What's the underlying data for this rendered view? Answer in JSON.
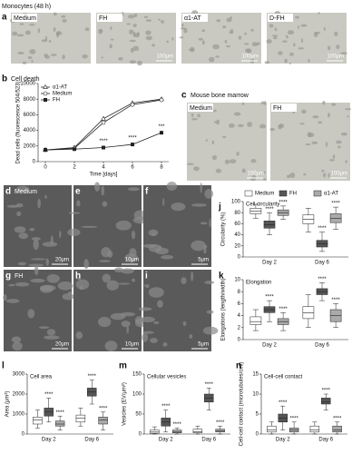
{
  "title": "Monocytes (48 h)",
  "panels": {
    "a": {
      "letter": "a",
      "images": [
        {
          "label": "Medium"
        },
        {
          "label": "FH",
          "scale": "100μm"
        },
        {
          "label": "α1-AT",
          "scale": "100μm"
        },
        {
          "label": "D-FH",
          "scale": "100μm"
        }
      ]
    },
    "c": {
      "letter": "c",
      "title": "Mouse bone marrow",
      "images": [
        {
          "label": "Medium",
          "scale": "100μm"
        },
        {
          "label": "FH",
          "scale": "100μm"
        }
      ]
    },
    "sem": {
      "images": [
        {
          "letter": "d",
          "label": "Medium",
          "scale": "20μm"
        },
        {
          "letter": "e",
          "scale": "10μm"
        },
        {
          "letter": "f",
          "scale": "5μm"
        },
        {
          "letter": "g",
          "label": "FH",
          "scale": "20μm"
        },
        {
          "letter": "h",
          "scale": "10μm"
        },
        {
          "letter": "i",
          "scale": "5μm"
        }
      ]
    }
  },
  "chart_data": [
    {
      "type": "line",
      "letter": "b",
      "title": "Cell death",
      "y_label": "Dead cells (fluorescence 504/523)",
      "x_label": "Time [days]",
      "x": [
        0,
        2,
        4,
        6,
        8
      ],
      "xlim": [
        -0.5,
        8.5
      ],
      "xticks": [
        0,
        2,
        4,
        6,
        8
      ],
      "ylim": [
        0,
        10000
      ],
      "yticks": [
        0,
        2000,
        4000,
        6000,
        8000,
        10000
      ],
      "legend": "upper left",
      "series": [
        {
          "name": "α1-AT",
          "marker": "triangle-open",
          "color": "#222222",
          "values": [
            1500,
            1800,
            5500,
            7500,
            8000
          ]
        },
        {
          "name": "Medium",
          "marker": "circle-open",
          "color": "#222222",
          "values": [
            1500,
            1700,
            5000,
            7300,
            7900
          ]
        },
        {
          "name": "FH",
          "marker": "square",
          "color": "#222222",
          "values": [
            1500,
            1600,
            1800,
            2200,
            3700
          ]
        }
      ],
      "annotations": [
        {
          "text": "****",
          "x": 4
        },
        {
          "text": "****",
          "x": 6
        },
        {
          "text": "***",
          "x": 8
        }
      ]
    },
    {
      "type": "box",
      "letter": "j",
      "title": "Cell circularity",
      "y_label": "Circularity (%)",
      "categories": [
        "Day 2",
        "Day 6"
      ],
      "ylim": [
        0,
        100
      ],
      "yticks": [
        0,
        20,
        40,
        60,
        80,
        100
      ],
      "legend": "top",
      "series": [
        {
          "name": "Medium",
          "color": "#ffffff",
          "values": [
            {
              "min": 70,
              "q1": 78,
              "median": 83,
              "q3": 88,
              "max": 95
            },
            {
              "min": 45,
              "q1": 60,
              "median": 68,
              "q3": 76,
              "max": 88
            }
          ]
        },
        {
          "name": "FH",
          "color": "#555555",
          "values": [
            {
              "min": 40,
              "q1": 52,
              "median": 58,
              "q3": 65,
              "max": 80
            },
            {
              "min": 10,
              "q1": 18,
              "median": 24,
              "q3": 30,
              "max": 45
            }
          ],
          "annotations": [
            "****",
            "****"
          ]
        },
        {
          "name": "α1-AT",
          "color": "#aaaaaa",
          "values": [
            {
              "min": 68,
              "q1": 75,
              "median": 80,
              "q3": 85,
              "max": 92
            },
            {
              "min": 50,
              "q1": 62,
              "median": 70,
              "q3": 78,
              "max": 90
            }
          ],
          "annotations": [
            "****",
            "****"
          ]
        }
      ]
    },
    {
      "type": "box",
      "letter": "k",
      "title": "Elongation",
      "y_label": "Elongations (length/width)",
      "categories": [
        "Day 2",
        "Day 6"
      ],
      "ylim": [
        0,
        10
      ],
      "yticks": [
        0,
        2,
        4,
        6,
        8,
        10
      ],
      "series": [
        {
          "color": "#ffffff",
          "values": [
            {
              "min": 1.5,
              "q1": 2.5,
              "median": 3,
              "q3": 3.8,
              "max": 5
            },
            {
              "min": 2,
              "q1": 3.5,
              "median": 4.5,
              "q3": 5.5,
              "max": 7.5
            }
          ]
        },
        {
          "color": "#555555",
          "values": [
            {
              "min": 3,
              "q1": 4.5,
              "median": 5,
              "q3": 5.5,
              "max": 6.5
            },
            {
              "min": 6.5,
              "q1": 7.5,
              "median": 8,
              "q3": 8.5,
              "max": 9.5
            }
          ],
          "annotations": [
            "****",
            "****"
          ]
        },
        {
          "color": "#aaaaaa",
          "values": [
            {
              "min": 1.5,
              "q1": 2.5,
              "median": 3,
              "q3": 3.5,
              "max": 4.5
            },
            {
              "min": 2,
              "q1": 3,
              "median": 4,
              "q3": 5,
              "max": 6
            }
          ],
          "annotations": [
            "****",
            "****"
          ]
        }
      ]
    },
    {
      "type": "box",
      "letter": "l",
      "title": "Cell area",
      "y_label": "Area (μm²)",
      "categories": [
        "Day 2",
        "Day 6"
      ],
      "ylim": [
        0,
        3000
      ],
      "yticks": [
        0,
        1000,
        2000,
        3000
      ],
      "series": [
        {
          "color": "#ffffff",
          "values": [
            {
              "min": 300,
              "q1": 500,
              "median": 700,
              "q3": 850,
              "max": 1200
            },
            {
              "min": 400,
              "q1": 600,
              "median": 800,
              "q3": 950,
              "max": 1300
            }
          ]
        },
        {
          "color": "#555555",
          "values": [
            {
              "min": 600,
              "q1": 900,
              "median": 1100,
              "q3": 1300,
              "max": 1800
            },
            {
              "min": 1500,
              "q1": 1900,
              "median": 2100,
              "q3": 2300,
              "max": 2700
            }
          ],
          "annotations": [
            "****",
            "****"
          ]
        },
        {
          "color": "#aaaaaa",
          "values": [
            {
              "min": 200,
              "q1": 400,
              "median": 500,
              "q3": 650,
              "max": 900
            },
            {
              "min": 200,
              "q1": 500,
              "median": 700,
              "q3": 850,
              "max": 1100
            }
          ],
          "annotations": [
            "****",
            "****"
          ]
        }
      ]
    },
    {
      "type": "box",
      "letter": "m",
      "title": "Cellular vesicles",
      "y_label": "Vesicles (EV/μm²)",
      "categories": [
        "Day 2",
        "Day 6"
      ],
      "ylim": [
        0,
        150
      ],
      "yticks": [
        0,
        50,
        100,
        150
      ],
      "series": [
        {
          "color": "#ffffff",
          "values": [
            {
              "min": 0,
              "q1": 2,
              "median": 5,
              "q3": 10,
              "max": 18
            },
            {
              "min": 0,
              "q1": 3,
              "median": 6,
              "q3": 12,
              "max": 20
            }
          ]
        },
        {
          "color": "#555555",
          "values": [
            {
              "min": 5,
              "q1": 20,
              "median": 30,
              "q3": 40,
              "max": 60
            },
            {
              "min": 60,
              "q1": 80,
              "median": 90,
              "q3": 100,
              "max": 115
            }
          ],
          "annotations": [
            "****",
            "****"
          ]
        },
        {
          "color": "#aaaaaa",
          "values": [
            {
              "min": 0,
              "q1": 3,
              "median": 5,
              "q3": 10,
              "max": 15
            },
            {
              "min": 0,
              "q1": 5,
              "median": 8,
              "q3": 12,
              "max": 20
            }
          ],
          "annotations": [
            "****",
            "****"
          ]
        }
      ]
    },
    {
      "type": "box",
      "letter": "n",
      "title": "Cell-cell contact",
      "y_label": "Cell-cell contact (microtubules/cell)",
      "categories": [
        "Day 2",
        "Day 6"
      ],
      "ylim": [
        0,
        15
      ],
      "yticks": [
        0,
        5,
        10,
        15
      ],
      "series": [
        {
          "color": "#ffffff",
          "values": [
            {
              "min": 0,
              "q1": 0.5,
              "median": 1,
              "q3": 2,
              "max": 3
            },
            {
              "min": 0,
              "q1": 0.5,
              "median": 1,
              "q3": 2,
              "max": 3
            }
          ]
        },
        {
          "color": "#555555",
          "values": [
            {
              "min": 1,
              "q1": 3,
              "median": 4,
              "q3": 5,
              "max": 7
            },
            {
              "min": 6,
              "q1": 7.5,
              "median": 8,
              "q3": 9,
              "max": 10
            }
          ],
          "annotations": [
            "****",
            "****"
          ]
        },
        {
          "color": "#aaaaaa",
          "values": [
            {
              "min": 0,
              "q1": 0.5,
              "median": 1,
              "q3": 1.5,
              "max": 3
            },
            {
              "min": 0,
              "q1": 0.5,
              "median": 1,
              "q3": 2,
              "max": 3
            }
          ],
          "annotations": [
            "****",
            "****"
          ]
        }
      ]
    }
  ]
}
